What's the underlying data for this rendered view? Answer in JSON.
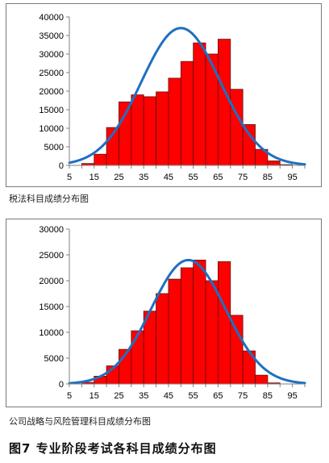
{
  "chart_data": [
    {
      "type": "bar",
      "caption": "税法科目成绩分布图",
      "x": [
        5,
        10,
        15,
        20,
        25,
        30,
        35,
        40,
        45,
        50,
        55,
        60,
        65,
        70,
        75,
        80,
        85,
        90,
        95
      ],
      "xticks": [
        5,
        15,
        25,
        35,
        45,
        55,
        65,
        75,
        85,
        95
      ],
      "values": [
        0,
        500,
        3000,
        10200,
        17100,
        19000,
        18500,
        19800,
        23500,
        28000,
        33000,
        30000,
        34000,
        20500,
        11000,
        4300,
        1200,
        200,
        0
      ],
      "fit_curve": {
        "type": "normal",
        "mean": 50,
        "sd": 16,
        "peak": 37000
      },
      "ylim": [
        0,
        40000
      ],
      "yticks": [
        0,
        5000,
        10000,
        15000,
        20000,
        25000,
        30000,
        35000,
        40000
      ],
      "xlim": [
        5,
        100
      ],
      "bar_color": "#ff0000",
      "curve_color": "#1f6fc1",
      "grid": false
    },
    {
      "type": "bar",
      "caption": "公司战略与风险管理科目成绩分布图",
      "x": [
        5,
        10,
        15,
        20,
        25,
        30,
        35,
        40,
        45,
        50,
        55,
        60,
        65,
        70,
        75,
        80,
        85,
        90,
        95
      ],
      "xticks": [
        5,
        15,
        25,
        35,
        45,
        55,
        65,
        75,
        85,
        95
      ],
      "values": [
        0,
        300,
        1500,
        3500,
        6700,
        10300,
        14100,
        17500,
        20300,
        22500,
        24000,
        20000,
        23700,
        13300,
        6400,
        1700,
        200,
        0,
        0
      ],
      "fit_curve": {
        "type": "normal",
        "mean": 53,
        "sd": 15,
        "peak": 24000
      },
      "ylim": [
        0,
        30000
      ],
      "yticks": [
        0,
        5000,
        10000,
        15000,
        20000,
        25000,
        30000
      ],
      "xlim": [
        5,
        100
      ],
      "bar_color": "#ff0000",
      "curve_color": "#1f6fc1",
      "grid": false
    }
  ],
  "figure_title": "图7  专业阶段考试各科目成绩分布图"
}
